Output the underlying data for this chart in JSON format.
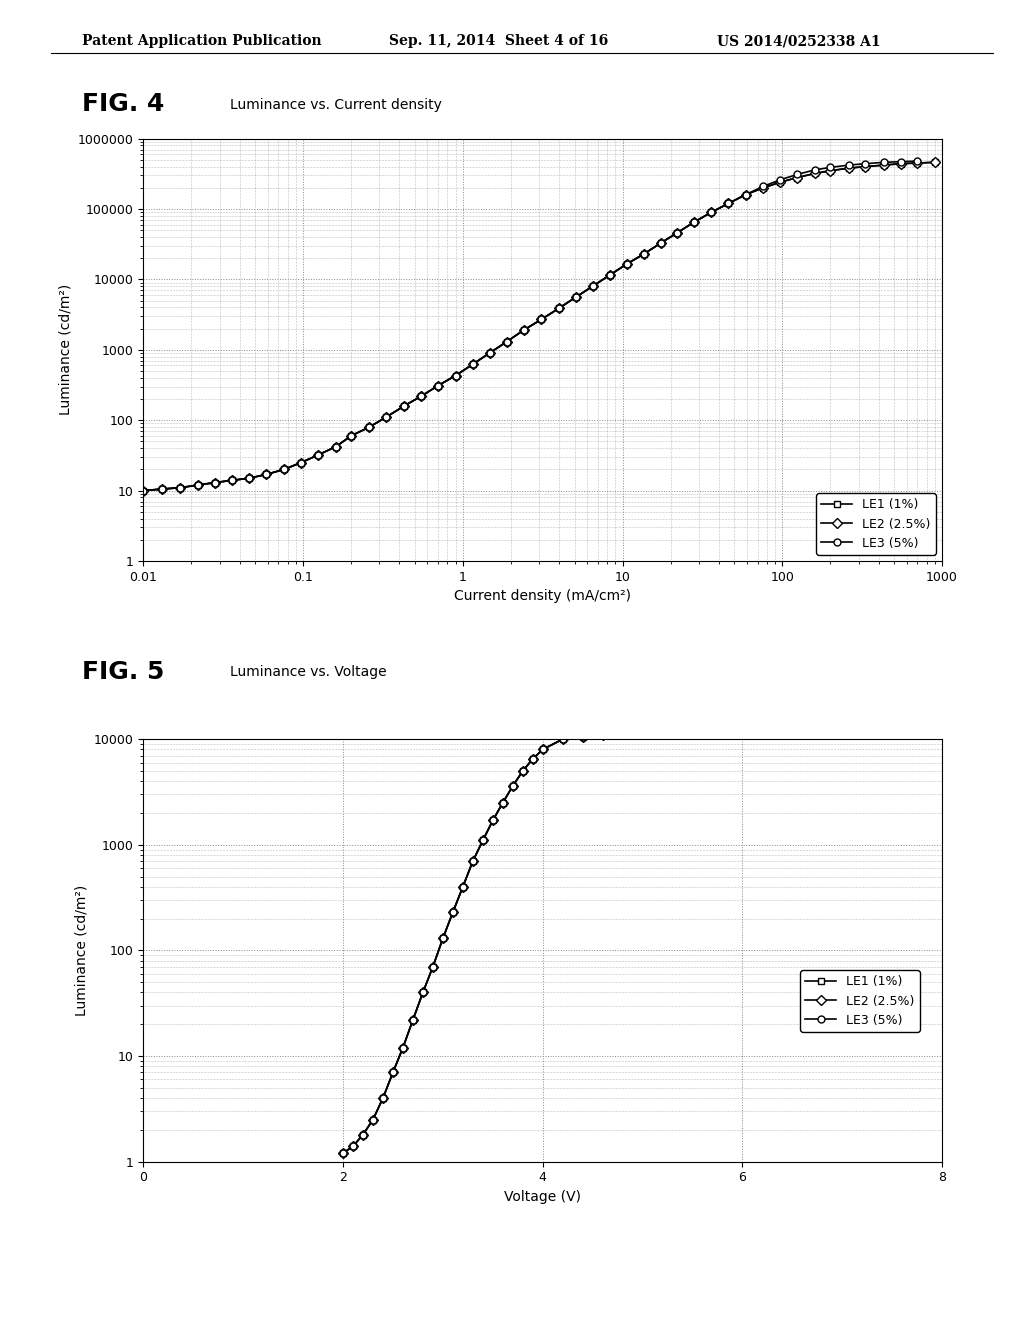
{
  "header_left": "Patent Application Publication",
  "header_center": "Sep. 11, 2014  Sheet 4 of 16",
  "header_right": "US 2014/0252338 A1",
  "fig4_title": "FIG. 4",
  "fig4_subtitle": "Luminance vs. Current density",
  "fig4_xlabel": "Current density (mA/cm²)",
  "fig4_ylabel": "Luminance (cd/m²)",
  "fig4_xticks": [
    0.01,
    0.1,
    1,
    10,
    100,
    1000
  ],
  "fig4_xtick_labels": [
    "0.01",
    "0.1",
    "1",
    "10",
    "100",
    "1000"
  ],
  "fig4_yticks": [
    1,
    10,
    100,
    1000,
    10000,
    100000,
    1000000
  ],
  "fig4_ytick_labels": [
    "1",
    "10",
    "100",
    "1000",
    "10000",
    "100000",
    "1000000"
  ],
  "fig5_title": "FIG. 5",
  "fig5_subtitle": "Luminance vs. Voltage",
  "fig5_xlabel": "Voltage (V)",
  "fig5_ylabel": "Luminance (cd/m²)",
  "fig5_xlim": [
    0,
    8
  ],
  "fig5_xticks": [
    0,
    2,
    4,
    6,
    8
  ],
  "fig5_xtick_labels": [
    "0",
    "2",
    "4",
    "6",
    "8"
  ],
  "fig5_yticks": [
    1,
    10,
    100,
    1000,
    10000
  ],
  "fig5_ytick_labels": [
    "1",
    "10",
    "100",
    "1000",
    "10000"
  ],
  "legend_labels": [
    "LE1 (1%)",
    "LE2 (2.5%)",
    "LE3 (5%)"
  ],
  "line_color": "#000000",
  "bg_color": "#ffffff",
  "grid_color": "#888888",
  "fig4_LE1_x": [
    0.01,
    0.013,
    0.017,
    0.022,
    0.028,
    0.036,
    0.046,
    0.059,
    0.076,
    0.097,
    0.124,
    0.16,
    0.2,
    0.26,
    0.33,
    0.43,
    0.55,
    0.7,
    0.9,
    1.15,
    1.47,
    1.88,
    2.4,
    3.1,
    4.0,
    5.1,
    6.5,
    8.3,
    10.6,
    13.6,
    17.4,
    22,
    28,
    36,
    46,
    59,
    76,
    97,
    124,
    160,
    200,
    260,
    330,
    430,
    550,
    700,
    900
  ],
  "fig4_LE1_y": [
    10,
    10.5,
    11,
    12,
    13,
    14,
    15,
    17,
    20,
    25,
    32,
    42,
    60,
    80,
    110,
    160,
    220,
    310,
    430,
    620,
    900,
    1300,
    1900,
    2700,
    3900,
    5600,
    8000,
    11500,
    16500,
    23000,
    33000,
    46000,
    65000,
    90000,
    120000,
    160000,
    200000,
    240000,
    280000,
    320000,
    350000,
    380000,
    400000,
    420000,
    440000,
    450000,
    460000
  ],
  "fig4_LE2_x": [
    0.01,
    0.013,
    0.017,
    0.022,
    0.028,
    0.036,
    0.046,
    0.059,
    0.076,
    0.097,
    0.124,
    0.16,
    0.2,
    0.26,
    0.33,
    0.43,
    0.55,
    0.7,
    0.9,
    1.15,
    1.47,
    1.88,
    2.4,
    3.1,
    4.0,
    5.1,
    6.5,
    8.3,
    10.6,
    13.6,
    17.4,
    22,
    28,
    36,
    46,
    59,
    76,
    97,
    124,
    160,
    200,
    260,
    330,
    430,
    550,
    700,
    900
  ],
  "fig4_LE2_y": [
    10,
    10.5,
    11,
    12,
    13,
    14,
    15,
    17,
    20,
    25,
    32,
    42,
    60,
    80,
    110,
    160,
    220,
    310,
    430,
    620,
    900,
    1300,
    1900,
    2700,
    3900,
    5600,
    8000,
    11500,
    16500,
    23000,
    33000,
    46000,
    65000,
    90000,
    120000,
    160000,
    200000,
    240000,
    280000,
    320000,
    350000,
    380000,
    400000,
    420000,
    440000,
    450000,
    460000
  ],
  "fig4_LE3_x": [
    0.01,
    0.013,
    0.017,
    0.022,
    0.028,
    0.036,
    0.046,
    0.059,
    0.076,
    0.097,
    0.124,
    0.16,
    0.2,
    0.26,
    0.33,
    0.43,
    0.55,
    0.7,
    0.9,
    1.15,
    1.47,
    1.88,
    2.4,
    3.1,
    4.0,
    5.1,
    6.5,
    8.3,
    10.6,
    13.6,
    17.4,
    22,
    28,
    36,
    46,
    59,
    76,
    97,
    124,
    160,
    200,
    260,
    330,
    430,
    550,
    700
  ],
  "fig4_LE3_y": [
    10,
    10.5,
    11,
    12,
    13,
    14,
    15,
    17,
    20,
    25,
    32,
    42,
    60,
    80,
    110,
    160,
    220,
    310,
    430,
    620,
    900,
    1300,
    1900,
    2700,
    3900,
    5600,
    8000,
    11500,
    16500,
    23000,
    33000,
    46000,
    65000,
    90000,
    120000,
    160000,
    210000,
    260000,
    310000,
    360000,
    390000,
    420000,
    440000,
    460000,
    470000,
    480000
  ],
  "fig5_LE1_x": [
    2.0,
    2.1,
    2.2,
    2.3,
    2.4,
    2.5,
    2.6,
    2.7,
    2.8,
    2.9,
    3.0,
    3.1,
    3.2,
    3.3,
    3.4,
    3.5,
    3.6,
    3.7,
    3.8,
    3.9,
    4.0,
    4.2,
    4.4,
    4.6,
    4.8,
    5.0
  ],
  "fig5_LE1_y": [
    1.2,
    1.4,
    1.8,
    2.5,
    4,
    7,
    12,
    22,
    40,
    70,
    130,
    230,
    400,
    700,
    1100,
    1700,
    2500,
    3600,
    5000,
    6500,
    8000,
    10000,
    10500,
    11000,
    11200,
    11500
  ],
  "fig5_LE2_x": [
    2.0,
    2.1,
    2.2,
    2.3,
    2.4,
    2.5,
    2.6,
    2.7,
    2.8,
    2.9,
    3.0,
    3.1,
    3.2,
    3.3,
    3.4,
    3.5,
    3.6,
    3.7,
    3.8,
    3.9,
    4.0,
    4.2,
    4.4,
    4.6,
    4.8,
    5.0
  ],
  "fig5_LE2_y": [
    1.2,
    1.4,
    1.8,
    2.5,
    4,
    7,
    12,
    22,
    40,
    70,
    130,
    230,
    400,
    700,
    1100,
    1700,
    2500,
    3600,
    5000,
    6500,
    8000,
    10000,
    10500,
    11000,
    11200,
    11500
  ],
  "fig5_LE3_x": [
    2.0,
    2.1,
    2.2,
    2.3,
    2.4,
    2.5,
    2.6,
    2.7,
    2.8,
    2.9,
    3.0,
    3.1,
    3.2,
    3.3,
    3.4,
    3.5,
    3.6,
    3.7,
    3.8,
    3.9,
    4.0,
    4.2,
    4.4,
    4.6,
    4.8,
    5.0
  ],
  "fig5_LE3_y": [
    1.2,
    1.4,
    1.8,
    2.5,
    4,
    7,
    12,
    22,
    40,
    70,
    130,
    230,
    400,
    700,
    1100,
    1700,
    2500,
    3600,
    5000,
    6500,
    8000,
    10000,
    10500,
    11000,
    11200,
    11500
  ]
}
